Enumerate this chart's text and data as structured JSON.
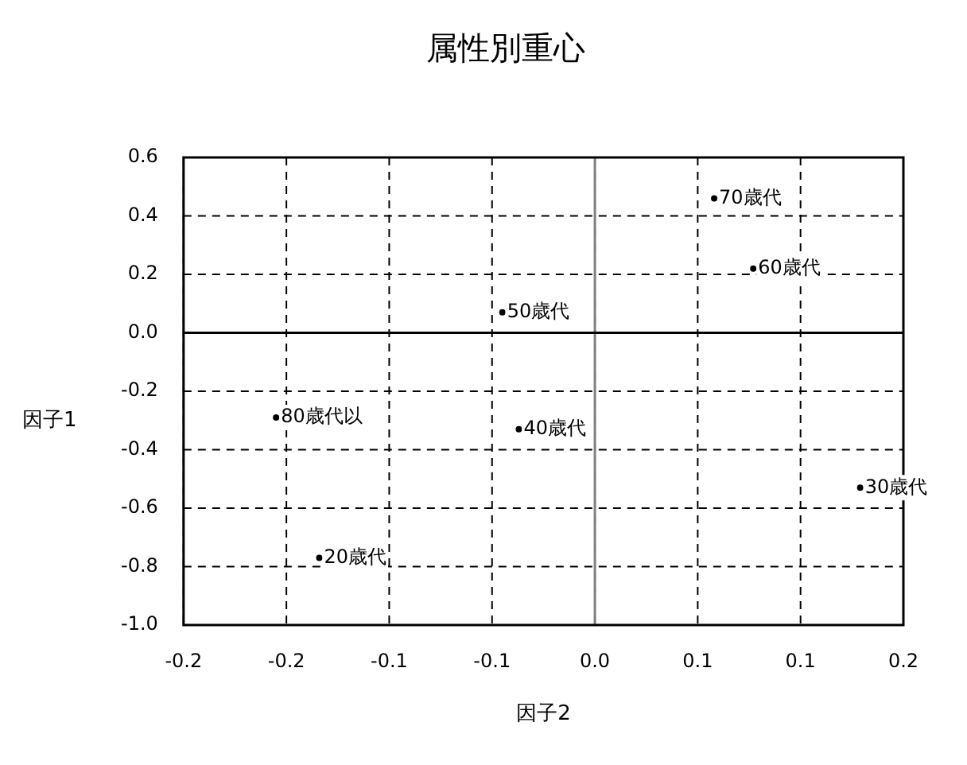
{
  "chart_data": {
    "type": "scatter",
    "title": "属性別重心",
    "xlabel": "因子2",
    "ylabel": "因子1",
    "series": [
      {
        "name": "70歳代",
        "color": "#000000",
        "x": [
          0.058
        ],
        "values": [
          0.46
        ]
      },
      {
        "name": "60歳代",
        "color": "#000000",
        "x": [
          0.077
        ],
        "values": [
          0.22
        ]
      },
      {
        "name": "50歳代",
        "color": "#000000",
        "x": [
          -0.045
        ],
        "values": [
          0.07
        ]
      },
      {
        "name": "80歳代以",
        "color": "#000000",
        "x": [
          -0.155
        ],
        "values": [
          -0.29
        ]
      },
      {
        "name": "40歳代",
        "color": "#000000",
        "x": [
          -0.037
        ],
        "values": [
          -0.33
        ]
      },
      {
        "name": "30歳代",
        "color": "#000000",
        "x": [
          0.129
        ],
        "values": [
          -0.53
        ]
      },
      {
        "name": "20歳代",
        "color": "#000000",
        "x": [
          -0.134
        ],
        "values": [
          -0.77
        ]
      }
    ],
    "xlim": [
      -0.2,
      0.15
    ],
    "xticks": [
      {
        "value": -0.2,
        "label": "-0.2"
      },
      {
        "value": -0.15,
        "label": "-0.2"
      },
      {
        "value": -0.1,
        "label": "-0.1"
      },
      {
        "value": -0.05,
        "label": "-0.1"
      },
      {
        "value": 0,
        "label": "0.0"
      },
      {
        "value": 0.05,
        "label": "0.1"
      },
      {
        "value": 0.1,
        "label": "0.1"
      },
      {
        "value": 0.15,
        "label": "0.2"
      }
    ],
    "ylim": [
      -1.0,
      0.6
    ],
    "yticks": [
      0.6,
      0.4,
      0.2,
      {
        "value": 0,
        "label": "0.0"
      },
      -0.2,
      -0.4,
      -0.6,
      -0.8,
      {
        "value": -1.0,
        "label": "-1.0"
      }
    ],
    "ref_lines": [
      {
        "axis": "x",
        "value": 0,
        "color": "#808080",
        "line_style": "solid"
      },
      {
        "axis": "y",
        "value": 0,
        "color": "#000000",
        "line_style": "solid"
      }
    ],
    "grid": true,
    "legend": false,
    "marker": "circle",
    "line_style": "dashed"
  }
}
